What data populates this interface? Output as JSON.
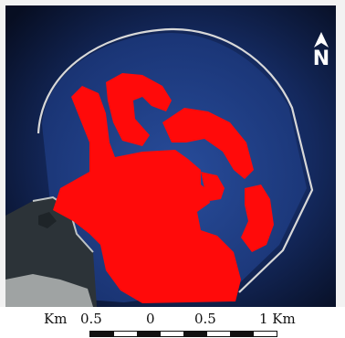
{
  "map": {
    "north_label": "N",
    "colors": {
      "land_fill": "#ff0a0a",
      "sea_deep": "#0a1533",
      "sea_shallow": "#1d3f8a",
      "breakwater": "#d8d8d8"
    }
  },
  "scale": {
    "unit_left": "Km",
    "label_05_left": "0.5",
    "label_0": "0",
    "label_05_right": "0.5",
    "label_1_unit": "1 Km"
  }
}
